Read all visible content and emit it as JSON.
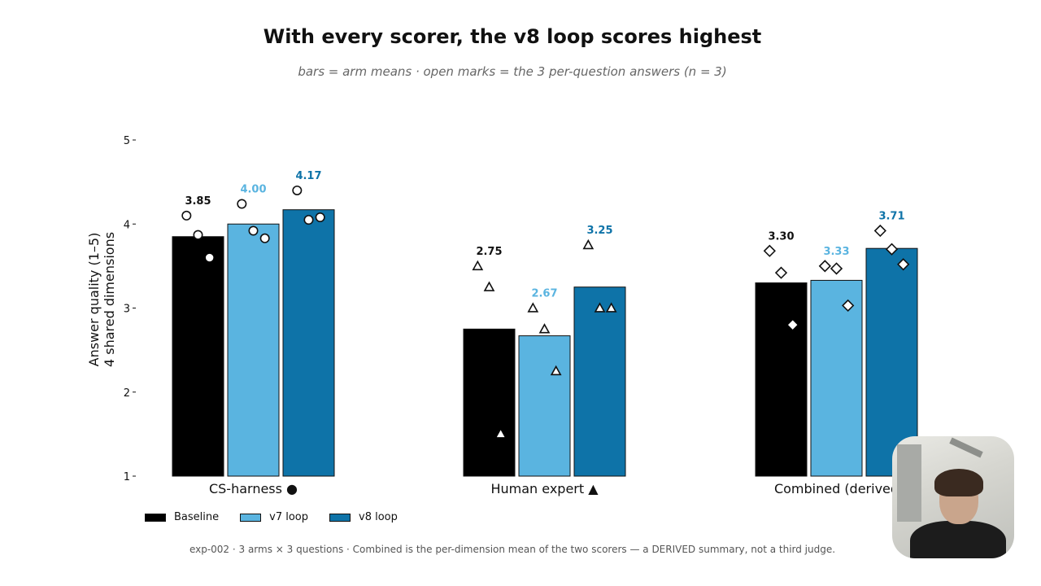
{
  "title": "With every scorer, the v8 loop scores highest",
  "subtitle": "bars = arm means · open marks = the 3 per-question answers (n = 3)",
  "footnote": "exp-002 · 3 arms × 3 questions · Combined is the per-dimension mean of the two scorers — a DERIVED summary, not a third judge.",
  "legend": [
    {
      "label": "Baseline",
      "color": "#000000"
    },
    {
      "label": "v7 loop",
      "color": "#5ab4e0"
    },
    {
      "label": "v8 loop",
      "color": "#0e73a8"
    }
  ],
  "webcam": {
    "icon": "presenter-webcam"
  },
  "chart_data": {
    "type": "bar",
    "ylabel": "Answer quality (1–5)\n4 shared dimensions",
    "ylim": [
      1,
      5
    ],
    "yticks": [
      1,
      2,
      3,
      4,
      5
    ],
    "grid": false,
    "categories": [
      "CS-harness",
      "Human expert",
      "Combined (derived"
    ],
    "category_markers": [
      "●",
      "▲",
      ""
    ],
    "series": [
      {
        "name": "Baseline",
        "color": "#000000",
        "label_color": "#111111",
        "values": [
          3.85,
          2.75,
          3.3
        ],
        "labels": [
          "3.85",
          "2.75",
          "3.30"
        ],
        "points": [
          [
            4.1,
            3.87,
            3.6
          ],
          [
            3.5,
            3.25,
            1.5
          ],
          [
            3.68,
            3.42,
            2.8
          ]
        ]
      },
      {
        "name": "v7 loop",
        "color": "#5ab4e0",
        "label_color": "#5ab4e0",
        "values": [
          4.0,
          2.67,
          3.33
        ],
        "labels": [
          "4.00",
          "2.67",
          "3.33"
        ],
        "points": [
          [
            4.24,
            3.92,
            3.83
          ],
          [
            3.0,
            2.75,
            2.25
          ],
          [
            3.5,
            3.47,
            3.03
          ]
        ]
      },
      {
        "name": "v8 loop",
        "color": "#0e73a8",
        "label_color": "#0e73a8",
        "values": [
          4.17,
          3.25,
          3.71
        ],
        "labels": [
          "4.17",
          "3.25",
          "3.71"
        ],
        "points": [
          [
            4.4,
            4.05,
            4.08
          ],
          [
            3.75,
            3.0,
            3.0
          ],
          [
            3.92,
            3.7,
            3.52
          ]
        ]
      }
    ],
    "marker_shapes": [
      "circle",
      "triangle",
      "diamond"
    ]
  }
}
